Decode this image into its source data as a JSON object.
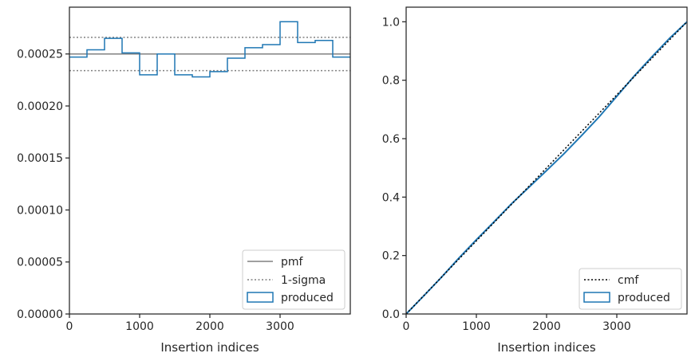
{
  "chart_data": [
    {
      "type": "line",
      "xlabel": "Insertion indices",
      "ylabel": "",
      "xlim": [
        0,
        4000
      ],
      "ylim": [
        0,
        0.000295
      ],
      "xticks": [
        0,
        1000,
        2000,
        3000
      ],
      "xtick_labels": [
        "0",
        "1000",
        "2000",
        "3000"
      ],
      "yticks": [
        0,
        5e-05,
        0.0001,
        0.00015,
        0.0002,
        0.00025
      ],
      "ytick_labels": [
        "0.00000",
        "0.00005",
        "0.00010",
        "0.00015",
        "0.00020",
        "0.00025"
      ],
      "grid": false,
      "legend_position": "lower-right",
      "pmf": 0.00025,
      "sigma_band": [
        0.000234,
        0.000266
      ],
      "histogram_edges": [
        0,
        250,
        500,
        750,
        1000,
        1250,
        1500,
        1750,
        2000,
        2250,
        2500,
        2750,
        3000,
        3250,
        3500,
        3750,
        4000
      ],
      "histogram_values": [
        0.000247,
        0.000254,
        0.000265,
        0.000251,
        0.00023,
        0.00025,
        0.00023,
        0.000228,
        0.000233,
        0.000246,
        0.000256,
        0.000259,
        0.000281,
        0.000261,
        0.000263,
        0.000247
      ],
      "series": [
        {
          "name": "pmf",
          "color": "#808080",
          "style": "solid"
        },
        {
          "name": "1-sigma",
          "color": "#808080",
          "style": "dotted"
        },
        {
          "name": "produced",
          "color": "#1f77b4",
          "style": "step"
        }
      ]
    },
    {
      "type": "line",
      "xlabel": "Insertion indices",
      "ylabel": "",
      "xlim": [
        0,
        4000
      ],
      "ylim": [
        0,
        1.05
      ],
      "xticks": [
        0,
        1000,
        2000,
        3000
      ],
      "xtick_labels": [
        "0",
        "1000",
        "2000",
        "3000"
      ],
      "yticks": [
        0,
        0.2,
        0.4,
        0.6,
        0.8,
        1.0
      ],
      "ytick_labels": [
        "0.0",
        "0.2",
        "0.4",
        "0.6",
        "0.8",
        "1.0"
      ],
      "grid": false,
      "legend_position": "lower-right",
      "series": [
        {
          "name": "cmf",
          "color": "#000000",
          "style": "dotted",
          "x": [
            0,
            4000
          ],
          "y": [
            0,
            1.0
          ]
        },
        {
          "name": "produced",
          "color": "#1f77b4",
          "style": "solid",
          "x": [
            0,
            250,
            500,
            750,
            1000,
            1250,
            1500,
            1750,
            2000,
            2250,
            2500,
            2750,
            3000,
            3250,
            3500,
            3750,
            4000
          ],
          "y": [
            0,
            0.062,
            0.125,
            0.191,
            0.254,
            0.315,
            0.377,
            0.434,
            0.491,
            0.549,
            0.611,
            0.675,
            0.745,
            0.815,
            0.88,
            0.943,
            1.0
          ]
        }
      ]
    }
  ]
}
